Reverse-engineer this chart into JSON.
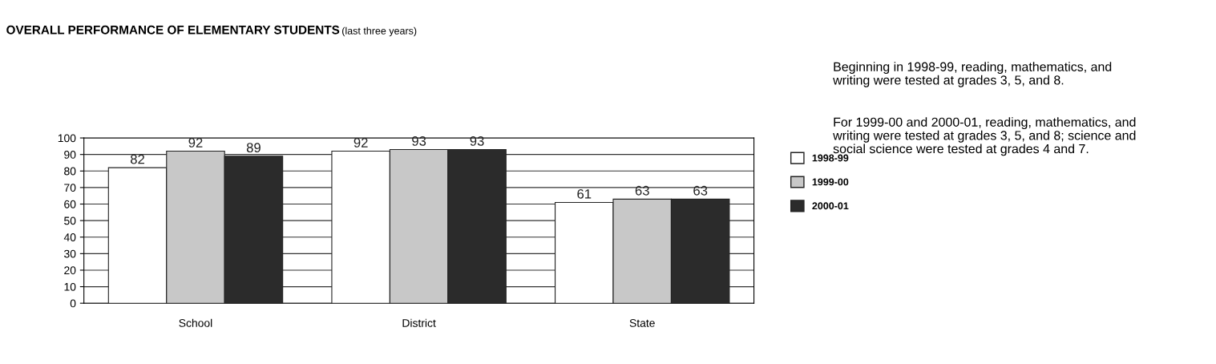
{
  "chart_data": {
    "type": "bar",
    "title": "OVERALL PERFORMANCE OF ELEMENTARY STUDENTS",
    "subtitle": "(last three years)",
    "categories": [
      "School",
      "District",
      "State"
    ],
    "series": [
      {
        "name": "1998-99",
        "color": "#ffffff",
        "values": [
          82,
          92,
          61
        ]
      },
      {
        "name": "1999-00",
        "color": "#c8c8c8",
        "values": [
          92,
          93,
          63
        ]
      },
      {
        "name": "2000-01",
        "color": "#2b2b2b",
        "values": [
          89,
          93,
          63
        ]
      }
    ],
    "ylim": [
      0,
      100
    ],
    "yticks": [
      0,
      10,
      20,
      30,
      40,
      50,
      60,
      70,
      80,
      90,
      100
    ],
    "grid": "y",
    "legend": "right",
    "data_labels": true,
    "annotations": [
      "Beginning in 1998-99, reading, mathematics, and writing were tested at grades 3, 5, and 8.",
      "For 1999-00 and 2000-01, reading, mathematics, and writing were tested at grades 3, 5, and 8; science and social science were tested at grades 4 and 7."
    ]
  }
}
